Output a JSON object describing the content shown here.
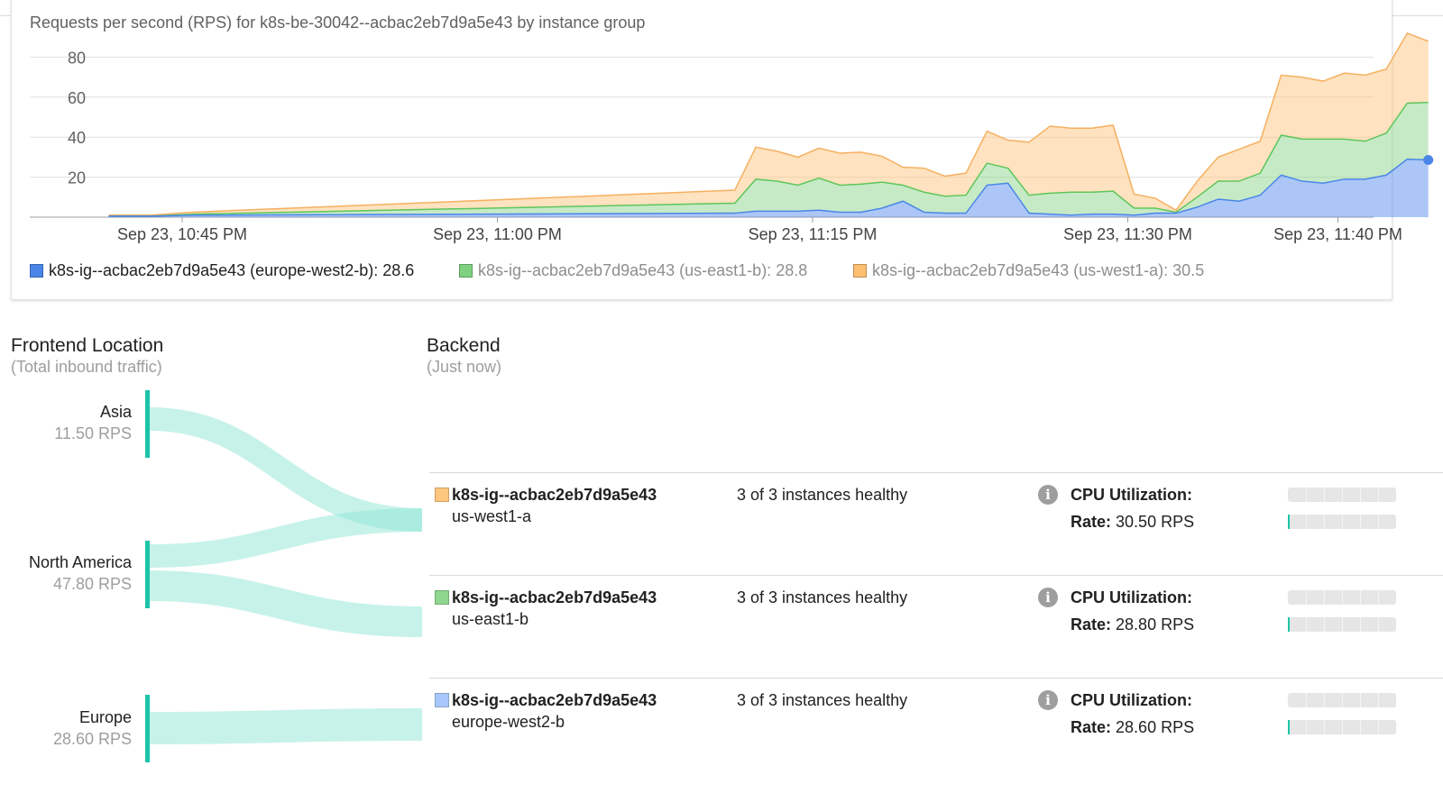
{
  "chart": {
    "title": "Requests per second (RPS) for k8s-be-30042--acbac2eb7d9a5e43 by instance group"
  },
  "chart_data": {
    "type": "area",
    "stacked": true,
    "title": "Requests per second (RPS) for k8s-be-30042--acbac2eb7d9a5e43 by instance group",
    "x_tick_labels": [
      "Sep 23, 10:45 PM",
      "Sep 23, 11:00 PM",
      "Sep 23, 11:15 PM",
      "Sep 23, 11:30 PM",
      "Sep 23, 11:40 PM"
    ],
    "x_tick_minutes": [
      -60,
      -45,
      -30,
      -15,
      -5
    ],
    "y_ticks": [
      20,
      40,
      60,
      80
    ],
    "ylim": [
      0,
      95
    ],
    "grid": true,
    "legend_position": "bottom",
    "x_minutes": [
      -63.5,
      -61.5,
      -59.5,
      -33.7,
      -32.7,
      -31.7,
      -30.7,
      -29.7,
      -28.7,
      -27.7,
      -26.7,
      -25.7,
      -24.7,
      -23.7,
      -22.7,
      -21.7,
      -20.7,
      -19.7,
      -18.7,
      -17.7,
      -16.7,
      -15.7,
      -14.7,
      -13.7,
      -12.7,
      -11.7,
      -10.7,
      -9.7,
      -8.7,
      -7.7,
      -6.7,
      -5.7,
      -4.7,
      -3.7,
      -2.7,
      -1.7,
      -0.7
    ],
    "series": [
      {
        "name": "k8s-ig--acbac2eb7d9a5e43 (europe-west2-b): 28.6",
        "color": "#5a8ff0",
        "values": [
          0.5,
          0.5,
          1,
          2,
          3,
          3,
          3,
          3.5,
          2.5,
          2.5,
          4.5,
          8,
          2.5,
          2,
          2,
          16,
          17,
          2,
          1.5,
          1,
          1.5,
          1.5,
          1,
          2,
          2,
          5,
          9,
          8,
          11,
          21,
          18,
          17,
          19,
          19,
          21,
          29,
          28.6
        ]
      },
      {
        "name": "k8s-ig--acbac2eb7d9a5e43 (us-east1-b): 28.8",
        "color": "#8fd68e",
        "values": [
          0,
          0,
          0.5,
          5,
          16,
          15,
          13,
          16,
          13.5,
          14,
          13,
          8,
          10,
          8.5,
          9,
          11,
          7.5,
          9,
          10.5,
          11.5,
          11,
          11.5,
          3.5,
          2.5,
          0.5,
          5,
          9,
          10,
          11,
          20,
          21,
          22,
          20,
          19,
          21,
          28,
          28.8
        ]
      },
      {
        "name": "k8s-ig--acbac2eb7d9a5e43 (us-west1-a): 30.5",
        "color": "#ffc680",
        "values": [
          0.5,
          0.5,
          1,
          6.5,
          16,
          15,
          14,
          15,
          16,
          16,
          13,
          9,
          12,
          10,
          11,
          16,
          14,
          26.5,
          33.5,
          32,
          32,
          33,
          7,
          5,
          1,
          8,
          12,
          16,
          16,
          30,
          31,
          29,
          33,
          33,
          32,
          35,
          30.5
        ]
      }
    ]
  },
  "legend": [
    {
      "label": "k8s-ig--acbac2eb7d9a5e43 (europe-west2-b): 28.6",
      "color": "#4a86e8",
      "state": "active"
    },
    {
      "label": "k8s-ig--acbac2eb7d9a5e43 (us-east1-b): 28.8",
      "color": "#7fd27f",
      "state": "inactive"
    },
    {
      "label": "k8s-ig--acbac2eb7d9a5e43 (us-west1-a): 30.5",
      "color": "#ffbf73",
      "state": "inactive"
    }
  ],
  "frontend": {
    "title": "Frontend Location",
    "subtitle": "(Total inbound traffic)",
    "locations": [
      {
        "name": "Asia",
        "rps": "11.50 RPS"
      },
      {
        "name": "North America",
        "rps": "47.80 RPS"
      },
      {
        "name": "Europe",
        "rps": "28.60 RPS"
      }
    ]
  },
  "backend": {
    "title": "Backend",
    "subtitle": "(Just now)",
    "info_glyph": "i",
    "groups": [
      {
        "name": "k8s-ig--acbac2eb7d9a5e43",
        "region": "us-west1-a",
        "health": "3 of 3 instances healthy",
        "cpu_label": "CPU Utilization:",
        "rate_label": "Rate:",
        "rate_value": "30.50 RPS",
        "color": "#ffc680",
        "cpu_fraction": 0.0,
        "rate_fraction": 0.02,
        "icon": "info-icon"
      },
      {
        "name": "k8s-ig--acbac2eb7d9a5e43",
        "region": "us-east1-b",
        "health": "3 of 3 instances healthy",
        "cpu_label": "CPU Utilization:",
        "rate_label": "Rate:",
        "rate_value": "28.80 RPS",
        "color": "#8fd68e",
        "cpu_fraction": 0.0,
        "rate_fraction": 0.02,
        "icon": "info-icon"
      },
      {
        "name": "k8s-ig--acbac2eb7d9a5e43",
        "region": "europe-west2-b",
        "health": "3 of 3 instances healthy",
        "cpu_label": "CPU Utilization:",
        "rate_label": "Rate:",
        "rate_value": "28.60 RPS",
        "color": "#a8c8fb",
        "cpu_fraction": 0.0,
        "rate_fraction": 0.02,
        "icon": "info-icon"
      }
    ]
  },
  "colors": {
    "flow": "#1cc4a8",
    "flow_band": "#8fe5d6",
    "grid": "#e0e0e0"
  }
}
